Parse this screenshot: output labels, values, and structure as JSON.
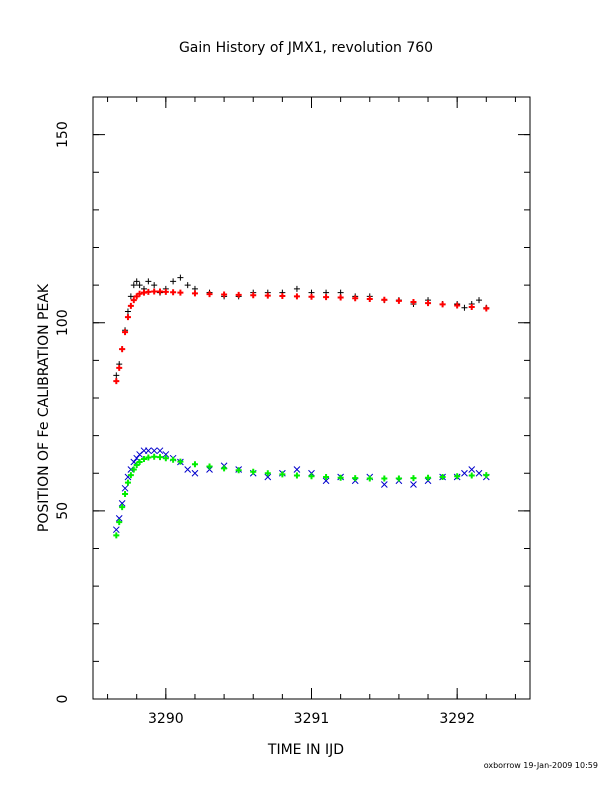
{
  "chart_data": {
    "type": "scatter",
    "title": "Gain History of JMX1, revolution 760",
    "xlabel": "TIME IN IJD",
    "ylabel": "POSITION OF Fe CALIBRATION PEAK",
    "xlim": [
      3289.5,
      3292.5
    ],
    "ylim": [
      0,
      160
    ],
    "x_ticks": [
      "3290",
      "3291",
      "3292"
    ],
    "y_ticks": [
      "0",
      "50",
      "100",
      "150"
    ],
    "grid": false,
    "legend": "none",
    "series": [
      {
        "marker": "plus",
        "color": "#000000",
        "x": [
          3289.66,
          3289.68,
          3289.7,
          3289.72,
          3289.74,
          3289.76,
          3289.78,
          3289.8,
          3289.82,
          3289.85,
          3289.88,
          3289.92,
          3289.96,
          3290.0,
          3290.05,
          3290.1,
          3290.15,
          3290.2,
          3290.3,
          3290.4,
          3290.5,
          3290.6,
          3290.7,
          3290.8,
          3290.9,
          3291.0,
          3291.1,
          3291.2,
          3291.3,
          3291.4,
          3291.5,
          3291.6,
          3291.7,
          3291.8,
          3291.9,
          3292.0,
          3292.05,
          3292.1,
          3292.15,
          3292.2
        ],
        "y": [
          86,
          89,
          93,
          98,
          103,
          107,
          110,
          111,
          110,
          109,
          111,
          110,
          108,
          109,
          111,
          112,
          110,
          109,
          108,
          107,
          107,
          108,
          108,
          108,
          109,
          108,
          108,
          108,
          107,
          107,
          106,
          106,
          105,
          106,
          105,
          105,
          104,
          105,
          106,
          104
        ]
      },
      {
        "marker": "plus",
        "color": "#ff0000",
        "x": [
          3289.66,
          3289.68,
          3289.7,
          3289.72,
          3289.74,
          3289.76,
          3289.78,
          3289.8,
          3289.82,
          3289.85,
          3289.88,
          3289.92,
          3289.96,
          3290.0,
          3290.05,
          3290.1,
          3290.2,
          3290.3,
          3290.4,
          3290.5,
          3290.6,
          3290.7,
          3290.8,
          3290.9,
          3291.0,
          3291.1,
          3291.2,
          3291.3,
          3291.4,
          3291.5,
          3291.6,
          3291.7,
          3291.8,
          3291.9,
          3292.0,
          3292.1,
          3292.2
        ],
        "y": [
          84.5,
          88,
          93,
          97.5,
          101.5,
          104.5,
          106,
          107,
          107.7,
          108,
          108.2,
          108.3,
          108.3,
          108.2,
          108.1,
          108,
          107.8,
          107.6,
          107.5,
          107.4,
          107.3,
          107.2,
          107.1,
          107,
          106.9,
          106.8,
          106.7,
          106.5,
          106.3,
          106.1,
          105.8,
          105.5,
          105.2,
          104.9,
          104.6,
          104.2,
          103.8
        ]
      },
      {
        "marker": "cross",
        "color": "#0000cc",
        "x": [
          3289.66,
          3289.68,
          3289.7,
          3289.72,
          3289.74,
          3289.76,
          3289.78,
          3289.8,
          3289.82,
          3289.85,
          3289.88,
          3289.92,
          3289.96,
          3290.0,
          3290.05,
          3290.1,
          3290.15,
          3290.2,
          3290.3,
          3290.4,
          3290.5,
          3290.6,
          3290.7,
          3290.8,
          3290.9,
          3291.0,
          3291.1,
          3291.2,
          3291.3,
          3291.4,
          3291.5,
          3291.6,
          3291.7,
          3291.8,
          3291.9,
          3292.0,
          3292.05,
          3292.1,
          3292.15,
          3292.2
        ],
        "y": [
          45,
          48,
          52,
          56,
          59,
          61,
          63,
          64,
          65,
          66,
          66,
          66,
          66,
          65,
          64,
          63,
          61,
          60,
          61,
          62,
          61,
          60,
          59,
          60,
          61,
          60,
          58,
          59,
          58,
          59,
          57,
          58,
          57,
          58,
          59,
          59,
          60,
          61,
          60,
          59
        ]
      },
      {
        "marker": "plus",
        "color": "#00ee00",
        "x": [
          3289.66,
          3289.68,
          3289.7,
          3289.72,
          3289.74,
          3289.76,
          3289.78,
          3289.8,
          3289.82,
          3289.85,
          3289.88,
          3289.92,
          3289.96,
          3290.0,
          3290.05,
          3290.1,
          3290.2,
          3290.3,
          3290.4,
          3290.5,
          3290.6,
          3290.7,
          3290.8,
          3290.9,
          3291.0,
          3291.1,
          3291.2,
          3291.3,
          3291.4,
          3291.5,
          3291.6,
          3291.7,
          3291.8,
          3291.9,
          3292.0,
          3292.1,
          3292.2
        ],
        "y": [
          43.5,
          47,
          51,
          54.5,
          57.5,
          59.5,
          61,
          62.2,
          63,
          63.8,
          64.2,
          64.4,
          64.3,
          64,
          63.6,
          63.1,
          62.4,
          61.8,
          61.3,
          60.8,
          60.4,
          60,
          59.7,
          59.4,
          59.2,
          59,
          58.8,
          58.7,
          58.6,
          58.6,
          58.6,
          58.7,
          58.8,
          59,
          59.2,
          59.4,
          59.5
        ]
      }
    ]
  },
  "footer": "oxborrow 19-Jan-2009 10:59"
}
